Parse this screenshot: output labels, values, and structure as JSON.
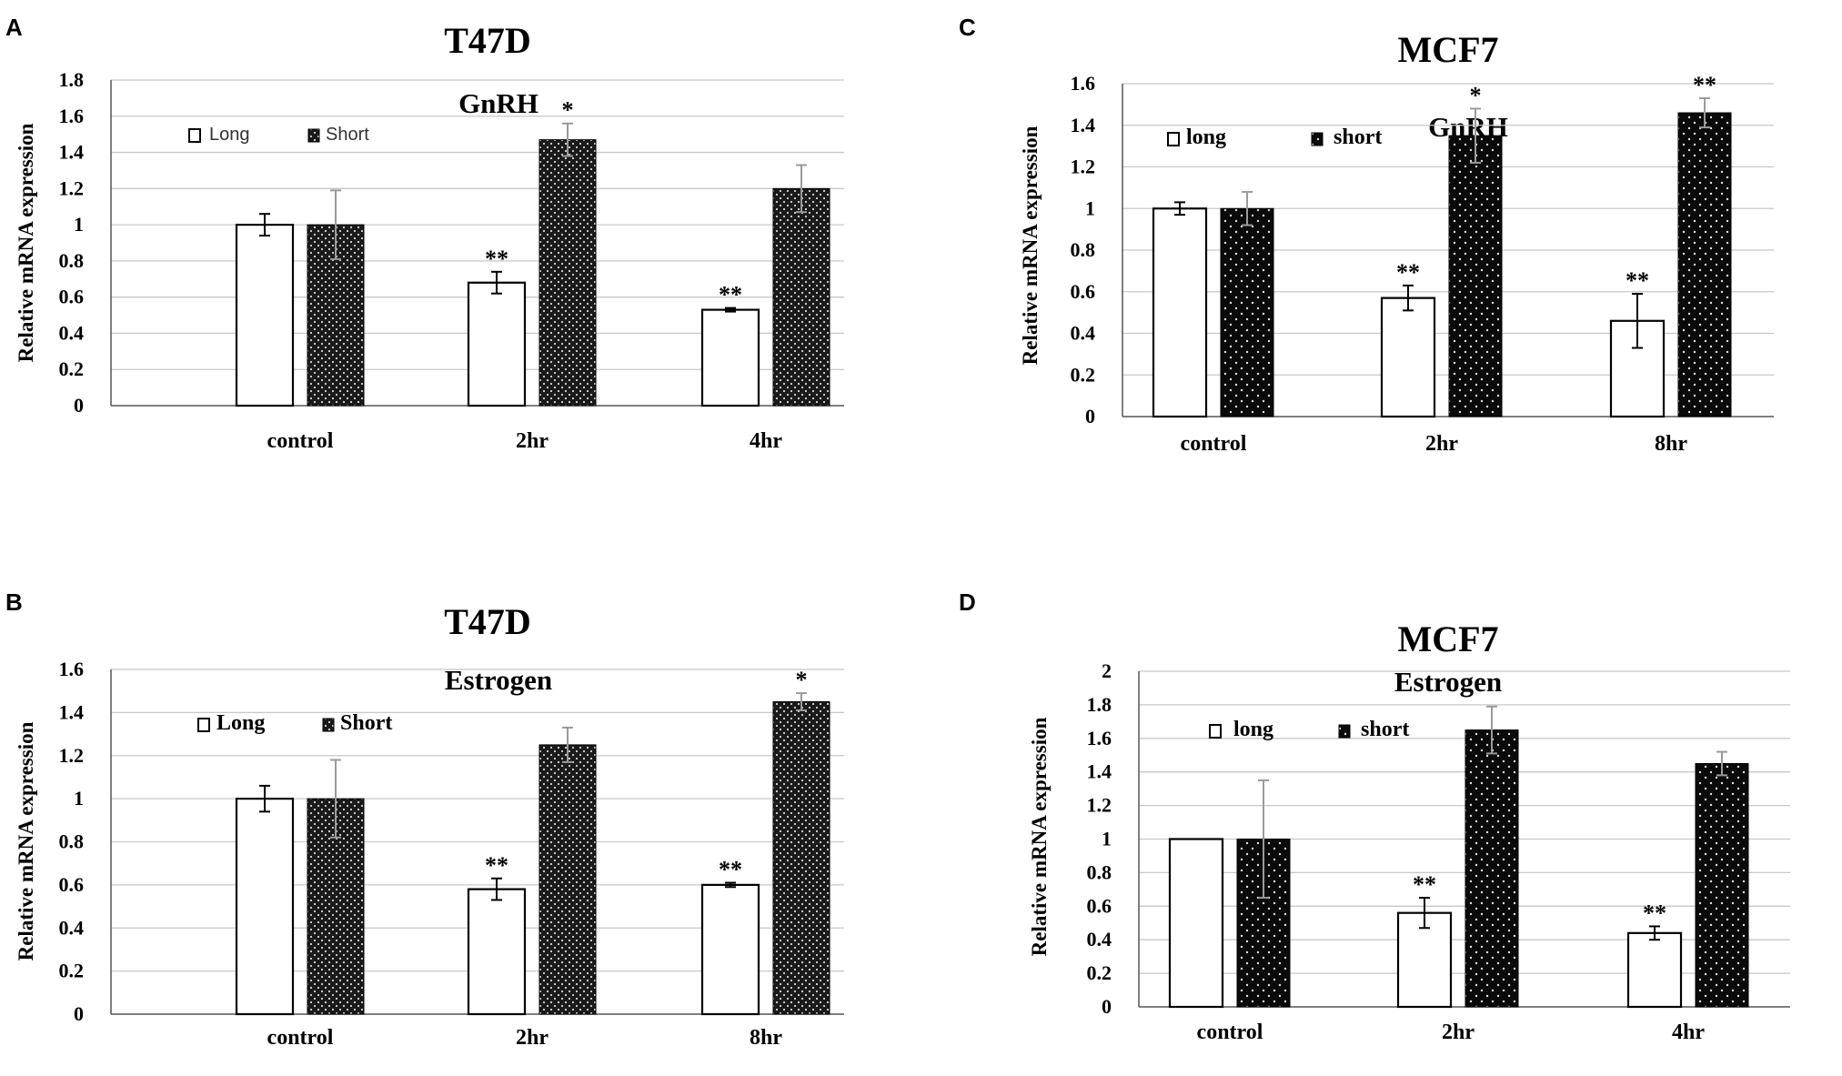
{
  "colors": {
    "long_fill": "#ffffff",
    "short_fill_dark": "#1a1a1a",
    "short_fill_black": "#0a0a0a",
    "dots": "#d8d8d8",
    "grid": "#c8c8c8",
    "axis": "#555555"
  },
  "chart_data": [
    {
      "panel": "A",
      "type": "bar",
      "title": "T47D",
      "subtitle": "GnRH",
      "xlabel": "",
      "ylabel": "Relative mRNA expression",
      "ylim": [
        0,
        1.8
      ],
      "ytick_labels": [
        "0",
        "0.2",
        "0.4",
        "0.6",
        "0.8",
        "1",
        "1.2",
        "1.4",
        "1.6",
        "1.8"
      ],
      "categories": [
        "control",
        "2hr",
        "4hr"
      ],
      "legend": [
        "Long",
        "Short"
      ],
      "legend_style": "sans",
      "series": [
        {
          "name": "Long",
          "values": [
            1.0,
            0.68,
            0.53
          ],
          "errors": [
            0.06,
            0.06,
            0.01
          ],
          "sig": [
            "",
            "**",
            "**"
          ]
        },
        {
          "name": "Short",
          "values": [
            1.0,
            1.47,
            1.2
          ],
          "errors": [
            0.19,
            0.09,
            0.13
          ],
          "sig": [
            "",
            "*",
            ""
          ]
        }
      ]
    },
    {
      "panel": "B",
      "type": "bar",
      "title": "T47D",
      "subtitle": "Estrogen",
      "xlabel": "",
      "ylabel": "Relative mRNA expression",
      "ylim": [
        0,
        1.6
      ],
      "ytick_labels": [
        "0",
        "0.2",
        "0.4",
        "0.6",
        "0.8",
        "1",
        "1.2",
        "1.4",
        "1.6"
      ],
      "categories": [
        "control",
        "2hr",
        "8hr"
      ],
      "legend": [
        "Long",
        "Short"
      ],
      "legend_style": "serif",
      "series": [
        {
          "name": "Long",
          "values": [
            1.0,
            0.58,
            0.6
          ],
          "errors": [
            0.06,
            0.05,
            0.01
          ],
          "sig": [
            "",
            "**",
            "**"
          ]
        },
        {
          "name": "Short",
          "values": [
            1.0,
            1.25,
            1.45
          ],
          "errors": [
            0.18,
            0.08,
            0.04
          ],
          "sig": [
            "",
            "",
            "*"
          ]
        }
      ]
    },
    {
      "panel": "C",
      "type": "bar",
      "title": "MCF7",
      "subtitle": "GnRH",
      "xlabel": "",
      "ylabel": "Relative mRNA expression",
      "ylim": [
        0,
        1.6
      ],
      "ytick_labels": [
        "0",
        "0.2",
        "0.4",
        "0.6",
        "0.8",
        "1",
        "1.2",
        "1.4",
        "1.6"
      ],
      "categories": [
        "control",
        "2hr",
        "8hr"
      ],
      "legend": [
        "long",
        "short"
      ],
      "legend_style": "serif",
      "series": [
        {
          "name": "long",
          "values": [
            1.0,
            0.57,
            0.46
          ],
          "errors": [
            0.03,
            0.06,
            0.13
          ],
          "sig": [
            "",
            "**",
            "**"
          ]
        },
        {
          "name": "short",
          "values": [
            1.0,
            1.35,
            1.46
          ],
          "errors": [
            0.08,
            0.13,
            0.07
          ],
          "sig": [
            "",
            "*",
            "**"
          ]
        }
      ]
    },
    {
      "panel": "D",
      "type": "bar",
      "title": "MCF7",
      "subtitle": "Estrogen",
      "xlabel": "",
      "ylabel": "Relative mRNA expression",
      "ylim": [
        0,
        2.0
      ],
      "ytick_labels": [
        "0",
        "0.2",
        "0.4",
        "0.6",
        "0.8",
        "1",
        "1.2",
        "1.4",
        "1.6",
        "1.8",
        "2"
      ],
      "categories": [
        "control",
        "2hr",
        "4hr"
      ],
      "legend": [
        "long",
        "short"
      ],
      "legend_style": "serif",
      "series": [
        {
          "name": "long",
          "values": [
            1.0,
            0.56,
            0.44
          ],
          "errors": [
            0.0,
            0.09,
            0.04
          ],
          "sig": [
            "",
            "**",
            "**"
          ]
        },
        {
          "name": "short",
          "values": [
            1.0,
            1.65,
            1.45
          ],
          "errors": [
            0.35,
            0.14,
            0.07
          ],
          "sig": [
            "",
            "",
            ""
          ]
        }
      ]
    }
  ]
}
